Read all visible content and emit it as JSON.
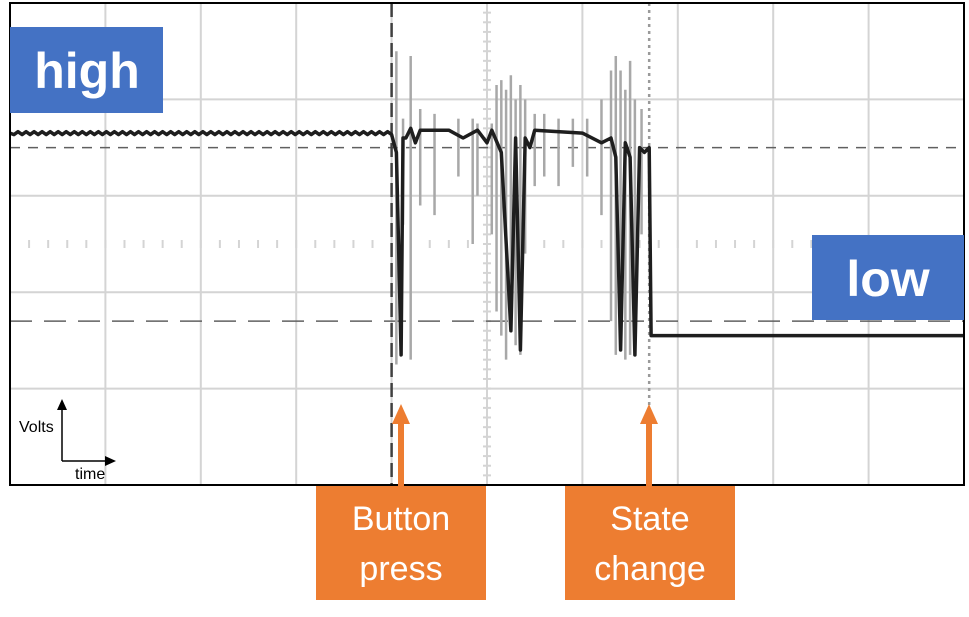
{
  "chart_data": {
    "type": "line",
    "title": "",
    "xlabel": "time",
    "ylabel": "Volts",
    "grid": true,
    "x_range": [
      0,
      10
    ],
    "y_range": [
      0,
      5
    ],
    "levels": {
      "high_label": "high",
      "low_label": "low",
      "high_value": 3.65,
      "low_value": 1.55,
      "upper_threshold": 3.5,
      "lower_threshold": 1.7
    },
    "events": [
      {
        "name": "Button press",
        "line1": "Button",
        "line2": "press",
        "x": 4.0,
        "style": "dashed"
      },
      {
        "name": "State change",
        "line1": "State",
        "line2": "change",
        "x": 6.7,
        "style": "dotted"
      }
    ],
    "series": [
      {
        "name": "signal",
        "points": [
          [
            0,
            3.65
          ],
          [
            4.0,
            3.65
          ],
          [
            4.05,
            3.45
          ],
          [
            4.1,
            1.35
          ],
          [
            4.12,
            3.6
          ],
          [
            4.15,
            3.6
          ],
          [
            4.2,
            3.7
          ],
          [
            4.25,
            3.55
          ],
          [
            4.3,
            3.68
          ],
          [
            4.6,
            3.68
          ],
          [
            4.75,
            3.6
          ],
          [
            4.9,
            3.68
          ],
          [
            5.0,
            3.55
          ],
          [
            5.05,
            3.68
          ],
          [
            5.15,
            3.45
          ],
          [
            5.25,
            1.6
          ],
          [
            5.3,
            3.6
          ],
          [
            5.35,
            1.4
          ],
          [
            5.4,
            3.6
          ],
          [
            5.45,
            3.5
          ],
          [
            5.5,
            3.68
          ],
          [
            6.0,
            3.65
          ],
          [
            6.2,
            3.55
          ],
          [
            6.3,
            3.6
          ],
          [
            6.35,
            3.4
          ],
          [
            6.4,
            1.4
          ],
          [
            6.45,
            3.55
          ],
          [
            6.5,
            3.4
          ],
          [
            6.55,
            1.35
          ],
          [
            6.6,
            3.5
          ],
          [
            6.65,
            3.45
          ],
          [
            6.7,
            3.5
          ],
          [
            6.72,
            1.55
          ],
          [
            10,
            1.55
          ]
        ]
      }
    ],
    "bounce_spikes": [
      {
        "x": 4.05,
        "top": 4.5,
        "bottom": 1.25
      },
      {
        "x": 4.12,
        "top": 3.8,
        "bottom": 2.7
      },
      {
        "x": 4.2,
        "top": 4.45,
        "bottom": 1.3
      },
      {
        "x": 4.3,
        "top": 3.9,
        "bottom": 2.9
      },
      {
        "x": 4.45,
        "top": 3.85,
        "bottom": 2.8
      },
      {
        "x": 4.7,
        "top": 3.8,
        "bottom": 3.2
      },
      {
        "x": 4.85,
        "top": 3.8,
        "bottom": 2.5
      },
      {
        "x": 4.9,
        "top": 3.75,
        "bottom": 3.0
      },
      {
        "x": 5.05,
        "top": 3.75,
        "bottom": 2.6
      },
      {
        "x": 5.1,
        "top": 4.15,
        "bottom": 1.8
      },
      {
        "x": 5.15,
        "top": 4.2,
        "bottom": 1.55
      },
      {
        "x": 5.2,
        "top": 4.1,
        "bottom": 1.3
      },
      {
        "x": 5.25,
        "top": 4.25,
        "bottom": 1.6
      },
      {
        "x": 5.3,
        "top": 4.0,
        "bottom": 1.45
      },
      {
        "x": 5.35,
        "top": 4.15,
        "bottom": 1.35
      },
      {
        "x": 5.4,
        "top": 4.0,
        "bottom": 2.4
      },
      {
        "x": 5.5,
        "top": 3.85,
        "bottom": 3.1
      },
      {
        "x": 5.6,
        "top": 3.85,
        "bottom": 3.2
      },
      {
        "x": 5.75,
        "top": 3.8,
        "bottom": 3.1
      },
      {
        "x": 5.9,
        "top": 3.8,
        "bottom": 3.3
      },
      {
        "x": 6.05,
        "top": 3.8,
        "bottom": 3.2
      },
      {
        "x": 6.2,
        "top": 4.0,
        "bottom": 2.8
      },
      {
        "x": 6.3,
        "top": 4.3,
        "bottom": 1.7
      },
      {
        "x": 6.35,
        "top": 4.45,
        "bottom": 1.35
      },
      {
        "x": 6.4,
        "top": 4.3,
        "bottom": 1.4
      },
      {
        "x": 6.45,
        "top": 4.1,
        "bottom": 1.3
      },
      {
        "x": 6.5,
        "top": 4.4,
        "bottom": 1.35
      },
      {
        "x": 6.55,
        "top": 4.0,
        "bottom": 1.6
      },
      {
        "x": 6.62,
        "top": 3.9,
        "bottom": 2.6
      }
    ]
  },
  "colors": {
    "label_blue": "#4472c4",
    "label_orange": "#ed7d31",
    "grid": "#d4d4d4",
    "trace": "#1e1e1e",
    "bounce": "#a8a8a8",
    "threshold": "#606060"
  }
}
